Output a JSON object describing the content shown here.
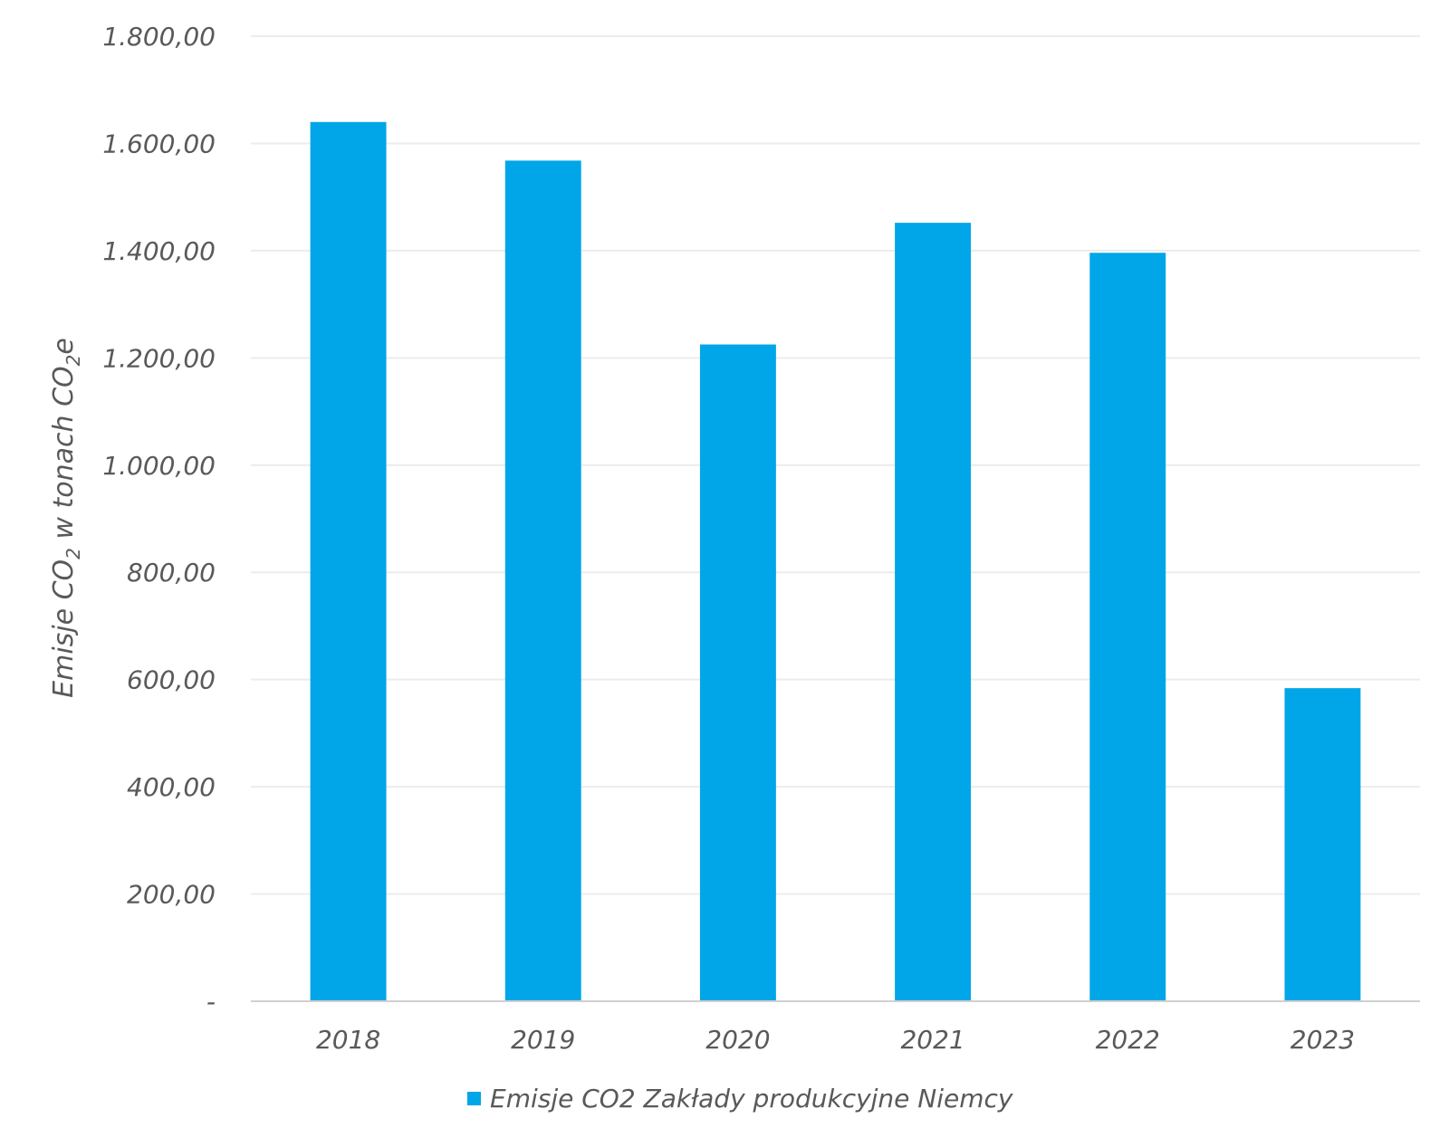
{
  "chart_data": {
    "type": "bar",
    "categories": [
      "2018",
      "2019",
      "2020",
      "2021",
      "2022",
      "2023"
    ],
    "series": [
      {
        "name": "Emisje CO2 Zakłady produkcyjne Niemcy",
        "values": [
          1640,
          1568,
          1225,
          1452,
          1396,
          584
        ],
        "color": "#00a6e8"
      }
    ],
    "ylabel": {
      "prefix": "Emisje CO",
      "sub1": "2",
      "middle": " w tonach CO",
      "sub2": "2",
      "suffix": "e"
    },
    "ylim": [
      0,
      1800
    ],
    "yticks": [
      {
        "value": 0,
        "label": "-"
      },
      {
        "value": 200,
        "label": "200,00"
      },
      {
        "value": 400,
        "label": "400,00"
      },
      {
        "value": 600,
        "label": "600,00"
      },
      {
        "value": 800,
        "label": "800,00"
      },
      {
        "value": 1000,
        "label": "1.000,00"
      },
      {
        "value": 1200,
        "label": "1.200,00"
      },
      {
        "value": 1400,
        "label": "1.400,00"
      },
      {
        "value": 1600,
        "label": "1.600,00"
      },
      {
        "value": 1800,
        "label": "1.800,00"
      }
    ],
    "grid": true,
    "legend_position": "bottom"
  }
}
